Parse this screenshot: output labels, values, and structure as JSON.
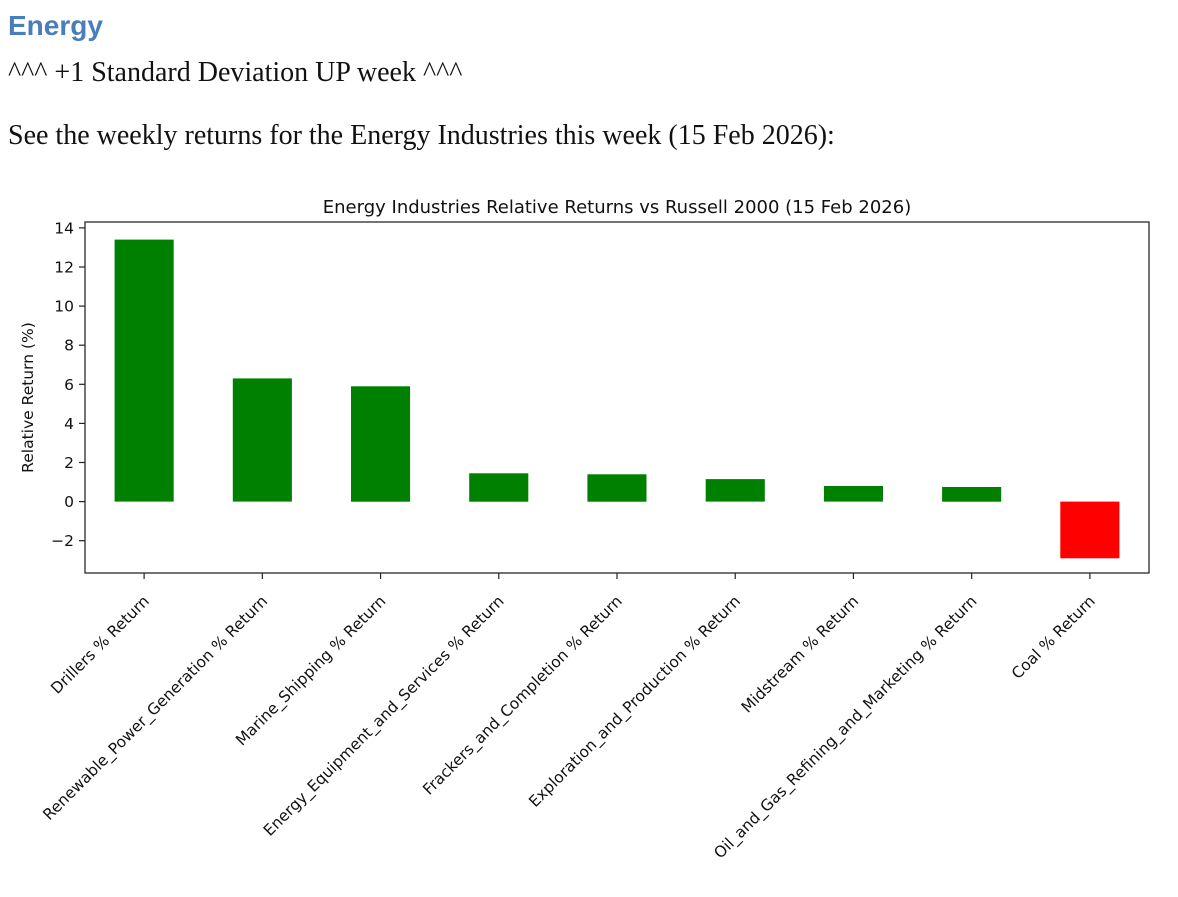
{
  "page": {
    "heading": "Energy",
    "heading_color": "#4a7dbb",
    "subheading": "^^^ +1 Standard Deviation UP week ^^^",
    "intro": "See the weekly returns for the Energy Industries this week (15 Feb 2026):"
  },
  "chart_data": {
    "type": "bar",
    "title": "Energy Industries Relative Returns vs Russell 2000 (15 Feb 2026)",
    "xlabel": "",
    "ylabel": "Relative Return (%)",
    "categories": [
      "Drillers % Return",
      "Renewable_Power_Generation % Return",
      "Marine_Shipping % Return",
      "Energy_Equipment_and_Services % Return",
      "Frackers_and_Completion % Return",
      "Exploration_and_Production % Return",
      "Midstream % Return",
      "Oil_and_Gas_Refining_and_Marketing % Return",
      "Coal % Return"
    ],
    "values": [
      13.4,
      6.3,
      5.9,
      1.45,
      1.4,
      1.15,
      0.8,
      0.75,
      -2.9
    ],
    "yticks": [
      -2,
      0,
      2,
      4,
      6,
      8,
      10,
      12,
      14
    ],
    "ylim": [
      -3.65,
      14.3
    ],
    "grid": false,
    "legend": "none",
    "x_tick_rotation": 45,
    "positive_color": "#008000",
    "negative_color": "#ff0000",
    "bar_color_rule": "green if value >= 0 else red"
  }
}
